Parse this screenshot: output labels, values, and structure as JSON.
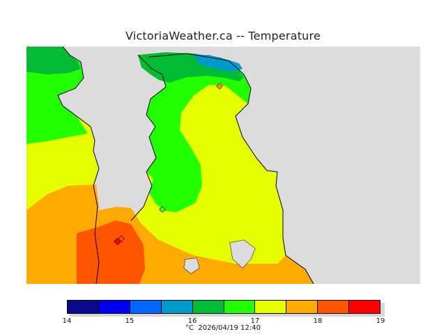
{
  "title": "VictoriaWeather.ca -- Temperature",
  "legend": {
    "colors": [
      "#0a0a8c",
      "#0000ee",
      "#0066ff",
      "#0099cc",
      "#00bb33",
      "#22ff00",
      "#e6ff00",
      "#ffaa00",
      "#ff5500",
      "#ff0000"
    ],
    "ticks": [
      "14",
      "15",
      "16",
      "17",
      "18",
      "19"
    ],
    "unit": "°C",
    "timestamp": "2026/04/19 12:40"
  },
  "map": {
    "background_color": "#dcdcdc",
    "water_color_scale_min": 14,
    "water_color_scale_max": 19,
    "station_marker_color": "#cc4400"
  }
}
